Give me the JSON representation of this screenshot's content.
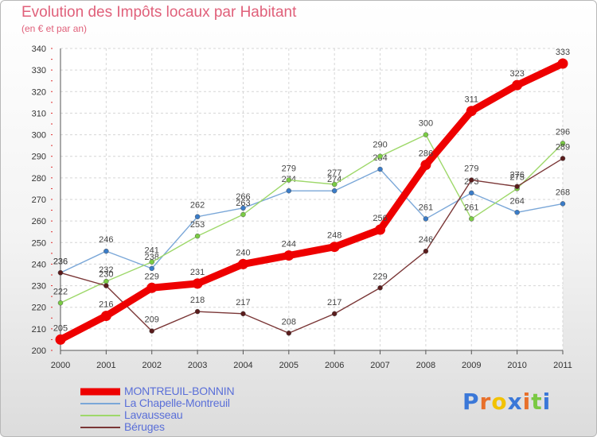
{
  "chart_data": {
    "type": "line",
    "title": "Evolution des Impôts locaux par Habitant",
    "subtitle": "(en € et par an)",
    "xlabel": "",
    "ylabel": "",
    "ylim": [
      200,
      340
    ],
    "yticks": [
      200,
      210,
      220,
      230,
      240,
      250,
      260,
      270,
      280,
      290,
      300,
      310,
      320,
      330,
      340
    ],
    "categories": [
      "2000",
      "2001",
      "2002",
      "2003",
      "2004",
      "2005",
      "2006",
      "2007",
      "2008",
      "2009",
      "2010",
      "2011"
    ],
    "legend_position": "bottom-left",
    "series": [
      {
        "name": "MONTREUIL-BONNIN",
        "color": "#ee0000",
        "emphasis": true,
        "dot_color": "#ee0000",
        "values": [
          205,
          216,
          229,
          231,
          240,
          244,
          248,
          256,
          286,
          311,
          323,
          333
        ],
        "labels": [
          "205",
          "216",
          "229",
          "231",
          "240",
          "244",
          "248",
          "256",
          "286",
          "311",
          "323",
          "333"
        ]
      },
      {
        "name": "La Chapelle-Montreuil",
        "color": "#7aa7d8",
        "emphasis": false,
        "dot_color": "#3a7cc8",
        "values": [
          236,
          246,
          238,
          262,
          266,
          274,
          274,
          284,
          261,
          273,
          264,
          268
        ],
        "labels": [
          "236",
          "246",
          "238",
          "262",
          "266",
          "274",
          "274",
          "284",
          "261",
          "273",
          "264",
          "268"
        ]
      },
      {
        "name": "Lavausseau",
        "color": "#9ed86a",
        "emphasis": false,
        "dot_color": "#7acc44",
        "values": [
          222,
          232,
          241,
          253,
          263,
          279,
          277,
          290,
          300,
          261,
          275,
          296
        ],
        "labels": [
          "222",
          "232",
          "241",
          "253",
          "263",
          "279",
          "277",
          "290",
          "300",
          "261",
          "275",
          "296"
        ]
      },
      {
        "name": "Béruges",
        "color": "#7a3636",
        "emphasis": false,
        "dot_color": "#5a1c1c",
        "values": [
          236,
          230,
          209,
          218,
          217,
          208,
          217,
          229,
          246,
          279,
          276,
          289
        ],
        "labels": [
          "236",
          "230",
          "209",
          "218",
          "217",
          "208",
          "217",
          "229",
          "246",
          "279",
          "276",
          "289"
        ]
      }
    ]
  },
  "logo": {
    "letters": [
      "P",
      "r",
      "o",
      "x",
      "i",
      "t",
      "i"
    ],
    "colors": [
      "#3b78d8",
      "#e8702a",
      "#f2c200",
      "#3b78d8",
      "#e8702a",
      "#7ac943",
      "#3b78d8"
    ]
  }
}
